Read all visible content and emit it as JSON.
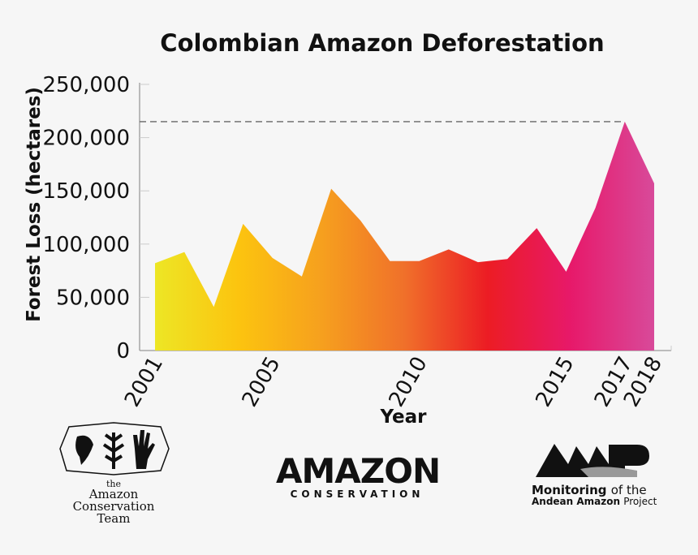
{
  "chart_data": {
    "type": "area",
    "title": "Colombian Amazon Deforestation",
    "xlabel": "Year",
    "ylabel": "Forest Loss (hectares)",
    "ylim": [
      0,
      250000
    ],
    "yticks": [
      0,
      50000,
      100000,
      150000,
      200000,
      250000
    ],
    "ytick_labels": [
      "0",
      "50,000",
      "100,000",
      "150,000",
      "200,000",
      "250,000"
    ],
    "xtick_labels": [
      "2001",
      "2005",
      "2010",
      "2015",
      "2017",
      "2018"
    ],
    "x": [
      2001,
      2002,
      2003,
      2004,
      2005,
      2006,
      2007,
      2008,
      2009,
      2010,
      2011,
      2012,
      2013,
      2014,
      2015,
      2016,
      2017,
      2018
    ],
    "values": [
      82000,
      92500,
      41000,
      119000,
      87000,
      69500,
      152000,
      122000,
      84000,
      84000,
      95000,
      83000,
      86000,
      115000,
      74000,
      134000,
      215000,
      157000
    ],
    "reference_line": {
      "value": 215000,
      "style": "dashed"
    },
    "gradient_colors": [
      "#ede625",
      "#fcc40f",
      "#f6a01e",
      "#f0702a",
      "#ec1c24",
      "#e7196a",
      "#d84a9a"
    ],
    "grid": false
  },
  "logos": {
    "act": {
      "line1": "the",
      "line2": "Amazon",
      "line3": "Conservation",
      "line4": "Team"
    },
    "ac": {
      "line1": "AMAZON",
      "line2": "CONSERVATION"
    },
    "maap": {
      "logo_text": "MAAP",
      "l1a": "Monitoring",
      "l1b": "of the",
      "l2a": "Andean Amazon",
      "l2b": "Project"
    }
  }
}
